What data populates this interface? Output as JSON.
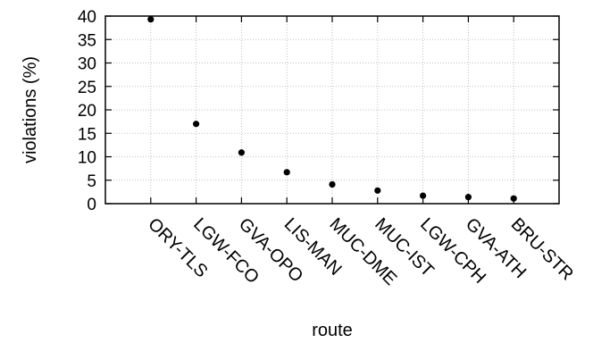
{
  "chart_data": {
    "type": "scatter",
    "title": "",
    "xlabel": "route",
    "ylabel": "violations (%)",
    "ylim": [
      0,
      40
    ],
    "yticks": [
      0,
      5,
      10,
      15,
      20,
      25,
      30,
      35,
      40
    ],
    "grid": true,
    "categories": [
      "ORY-TLS",
      "LGW-FCO",
      "GVA-OPO",
      "LIS-MAN",
      "MUC-DME",
      "MUC-IST",
      "LGW-CPH",
      "GVA-ATH",
      "BRU-STR"
    ],
    "values": [
      39.3,
      17.0,
      10.9,
      6.7,
      4.1,
      2.8,
      1.7,
      1.4,
      1.1
    ],
    "marker_color": "#000000"
  }
}
